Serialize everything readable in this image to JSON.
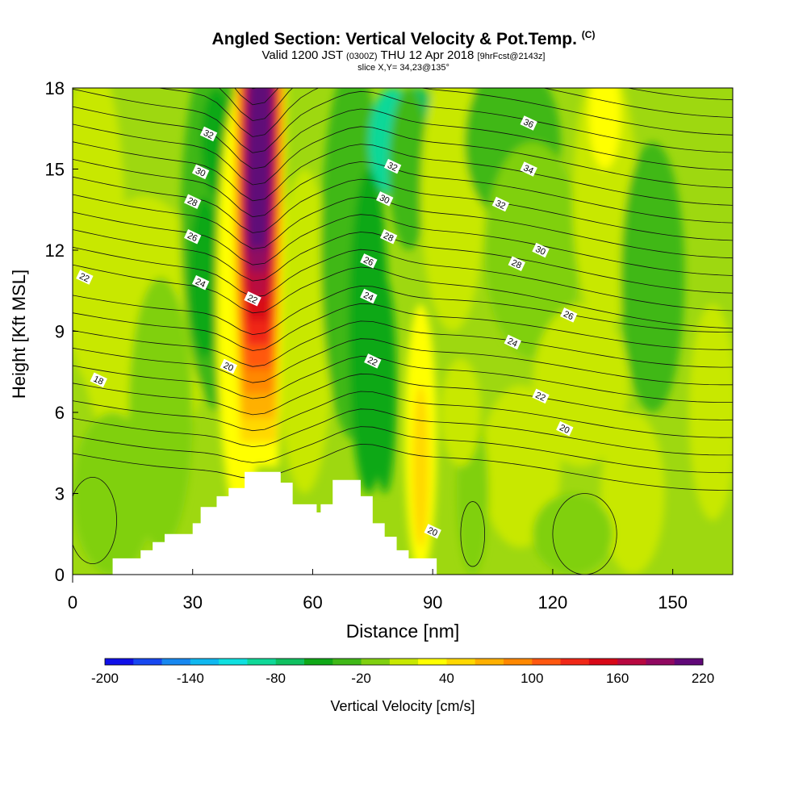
{
  "header": {
    "title": "Angled Section: Vertical Velocity & Pot.Temp.",
    "title_unit": "(C)",
    "valid_prefix": "Valid 1200 JST",
    "valid_utc": "(0300Z)",
    "valid_date": "THU 12 Apr 2018",
    "valid_fcst": "[9hrFcst@2143z]",
    "slice": "slice X,Y= 34,23@135°"
  },
  "chart_data": {
    "type": "heatmap",
    "xlabel": "Distance [nm]",
    "ylabel": "Height [Kft MSL]",
    "xlim": [
      0,
      165
    ],
    "ylim": [
      0,
      18
    ],
    "x_ticks": [
      "0",
      "30",
      "60",
      "90",
      "120",
      "150"
    ],
    "y_ticks": [
      "0",
      "3",
      "6",
      "9",
      "12",
      "15",
      "18"
    ],
    "fill_variable": "Vertical Velocity [cm/s]",
    "contour_variable": "Pot.Temp. (C)",
    "colorbar": {
      "label": "Vertical Velocity [cm/s]",
      "tick_labels": [
        "-200",
        "-140",
        "-80",
        "-20",
        "40",
        "100",
        "160",
        "220"
      ],
      "colors": [
        "#1010e8",
        "#1848f0",
        "#1888f0",
        "#10b8f0",
        "#10e0e0",
        "#10d898",
        "#10c060",
        "#10a818",
        "#40b818",
        "#80d010",
        "#c8e800",
        "#ffff00",
        "#ffd800",
        "#ffb000",
        "#ff8800",
        "#ff5810",
        "#f02818",
        "#d80818",
        "#b80840",
        "#900860",
        "#600878"
      ]
    },
    "updrafts_cm_s": [
      {
        "x_nm": 46,
        "peak": 220
      },
      {
        "x_nm": 86,
        "peak": 60
      }
    ],
    "downdrafts_cm_s": [
      {
        "x_nm": 35,
        "peak": -20
      },
      {
        "x_nm": 72,
        "peak": -40
      },
      {
        "x_nm": 82,
        "peak": -60
      }
    ],
    "terrain_profile_nm_kft": [
      [
        10,
        0.6
      ],
      [
        17,
        0.9
      ],
      [
        20,
        1.2
      ],
      [
        23,
        1.5
      ],
      [
        30,
        1.9
      ],
      [
        32,
        2.5
      ],
      [
        36,
        2.9
      ],
      [
        39,
        3.2
      ],
      [
        43,
        3.8
      ],
      [
        52,
        3.4
      ],
      [
        55,
        2.6
      ],
      [
        61,
        2.3
      ],
      [
        62,
        2.6
      ],
      [
        65,
        3.5
      ],
      [
        72,
        2.9
      ],
      [
        75,
        1.9
      ],
      [
        78,
        1.4
      ],
      [
        81,
        0.9
      ],
      [
        84,
        0.6
      ],
      [
        91,
        0.3
      ]
    ],
    "contour_labels": [
      {
        "text": "18",
        "x": 6.5,
        "y": 7.2
      },
      {
        "text": "20",
        "x": 39,
        "y": 7.7
      },
      {
        "text": "20",
        "x": 90,
        "y": 1.6
      },
      {
        "text": "20",
        "x": 123,
        "y": 5.4
      },
      {
        "text": "22",
        "x": 3,
        "y": 11.0
      },
      {
        "text": "22",
        "x": 45,
        "y": 10.2
      },
      {
        "text": "22",
        "x": 75,
        "y": 7.9
      },
      {
        "text": "22",
        "x": 117,
        "y": 6.6
      },
      {
        "text": "24",
        "x": 32,
        "y": 10.8
      },
      {
        "text": "24",
        "x": 74,
        "y": 10.3
      },
      {
        "text": "24",
        "x": 110,
        "y": 8.6
      },
      {
        "text": "26",
        "x": 30,
        "y": 12.5
      },
      {
        "text": "26",
        "x": 74,
        "y": 11.6
      },
      {
        "text": "26",
        "x": 124,
        "y": 9.6
      },
      {
        "text": "28",
        "x": 30,
        "y": 13.8
      },
      {
        "text": "28",
        "x": 79,
        "y": 12.5
      },
      {
        "text": "28",
        "x": 111,
        "y": 11.5
      },
      {
        "text": "30",
        "x": 32,
        "y": 14.9
      },
      {
        "text": "30",
        "x": 78,
        "y": 13.9
      },
      {
        "text": "30",
        "x": 117,
        "y": 12.0
      },
      {
        "text": "32",
        "x": 34,
        "y": 16.3
      },
      {
        "text": "32",
        "x": 80,
        "y": 15.1
      },
      {
        "text": "32",
        "x": 107,
        "y": 13.7
      },
      {
        "text": "34",
        "x": 114,
        "y": 15.0
      },
      {
        "text": "36",
        "x": 114,
        "y": 16.7
      }
    ]
  }
}
